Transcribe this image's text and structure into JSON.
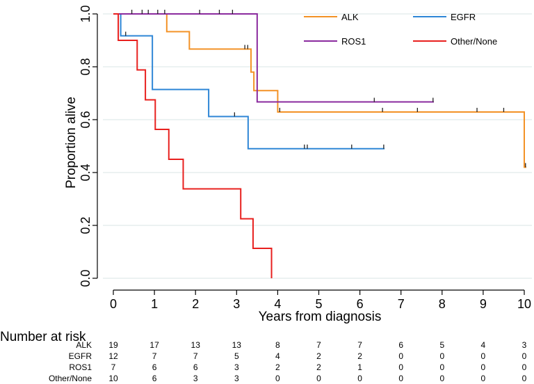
{
  "chart_data": {
    "type": "line",
    "subtype": "kaplan-meier",
    "title": "",
    "xlabel": "Years from diagnosis",
    "ylabel": "Proportion alive",
    "xlim": [
      0,
      10
    ],
    "ylim": [
      0,
      1
    ],
    "xticks": [
      0,
      1,
      2,
      3,
      4,
      5,
      6,
      7,
      8,
      9,
      10
    ],
    "xtick_labels": [
      "0",
      "1",
      "2",
      "3",
      "4",
      "5",
      "6",
      "7",
      "8",
      "9",
      "10"
    ],
    "yticks": [
      0,
      0.2,
      0.4,
      0.6,
      0.8,
      1.0
    ],
    "ytick_labels": [
      "0.0",
      "0.2",
      "0.4",
      "0.6",
      "0.8",
      "1.0"
    ],
    "grid": "horizontal",
    "legend_placement": "top-right",
    "series": [
      {
        "name": "ALK",
        "color": "#f39226",
        "steps": [
          [
            0,
            1.0
          ],
          [
            1.3,
            0.933
          ],
          [
            1.85,
            0.867
          ],
          [
            3.35,
            0.78
          ],
          [
            3.42,
            0.71
          ],
          [
            4.0,
            0.629
          ],
          [
            10.0,
            0.42
          ]
        ],
        "end": 10.05,
        "censored": [
          [
            3.2,
            0.867
          ],
          [
            3.27,
            0.867
          ],
          [
            4.05,
            0.629
          ],
          [
            6.55,
            0.629
          ],
          [
            7.4,
            0.629
          ],
          [
            8.85,
            0.629
          ],
          [
            9.5,
            0.629
          ],
          [
            10.03,
            0.42
          ]
        ]
      },
      {
        "name": "EGFR",
        "color": "#2e86d6",
        "steps": [
          [
            0,
            1.0
          ],
          [
            0.18,
            0.917
          ],
          [
            0.95,
            0.714
          ],
          [
            2.32,
            0.612
          ],
          [
            3.28,
            0.49
          ]
        ],
        "end": 6.6,
        "censored": [
          [
            0.3,
            0.917
          ],
          [
            2.95,
            0.612
          ],
          [
            4.65,
            0.49
          ],
          [
            4.72,
            0.49
          ],
          [
            5.8,
            0.49
          ],
          [
            6.58,
            0.49
          ]
        ]
      },
      {
        "name": "ROS1",
        "color": "#8a2a9e",
        "steps": [
          [
            0,
            1.0
          ],
          [
            3.5,
            0.667
          ]
        ],
        "end": 7.8,
        "censored": [
          [
            0.45,
            1.0
          ],
          [
            0.7,
            1.0
          ],
          [
            0.85,
            1.0
          ],
          [
            1.08,
            1.0
          ],
          [
            1.25,
            1.0
          ],
          [
            2.1,
            1.0
          ],
          [
            2.58,
            1.0
          ],
          [
            2.9,
            1.0
          ],
          [
            6.35,
            0.667
          ],
          [
            7.78,
            0.667
          ]
        ]
      },
      {
        "name": "Other/None",
        "color": "#e8201e",
        "steps": [
          [
            0,
            1.0
          ],
          [
            0.12,
            0.9
          ],
          [
            0.58,
            0.788
          ],
          [
            0.78,
            0.675
          ],
          [
            1.02,
            0.563
          ],
          [
            1.35,
            0.45
          ],
          [
            1.7,
            0.338
          ],
          [
            3.1,
            0.225
          ],
          [
            3.4,
            0.113
          ],
          [
            3.85,
            0.0
          ]
        ],
        "end": 3.85,
        "censored": []
      }
    ],
    "risk_table": {
      "title": "Number at risk",
      "times": [
        0,
        1,
        2,
        3,
        4,
        5,
        6,
        7,
        8,
        9,
        10
      ],
      "rows": [
        {
          "label": "ALK",
          "values": [
            "19",
            "17",
            "13",
            "13",
            "8",
            "7",
            "7",
            "6",
            "5",
            "4",
            "3"
          ]
        },
        {
          "label": "EGFR",
          "values": [
            "12",
            "7",
            "7",
            "5",
            "4",
            "2",
            "2",
            "0",
            "0",
            "0",
            "0"
          ]
        },
        {
          "label": "ROS1",
          "values": [
            "7",
            "6",
            "6",
            "3",
            "2",
            "2",
            "1",
            "0",
            "0",
            "0",
            "0"
          ]
        },
        {
          "label": "Other/None",
          "values": [
            "10",
            "6",
            "3",
            "3",
            "0",
            "0",
            "0",
            "0",
            "0",
            "0",
            "0"
          ]
        }
      ]
    }
  }
}
